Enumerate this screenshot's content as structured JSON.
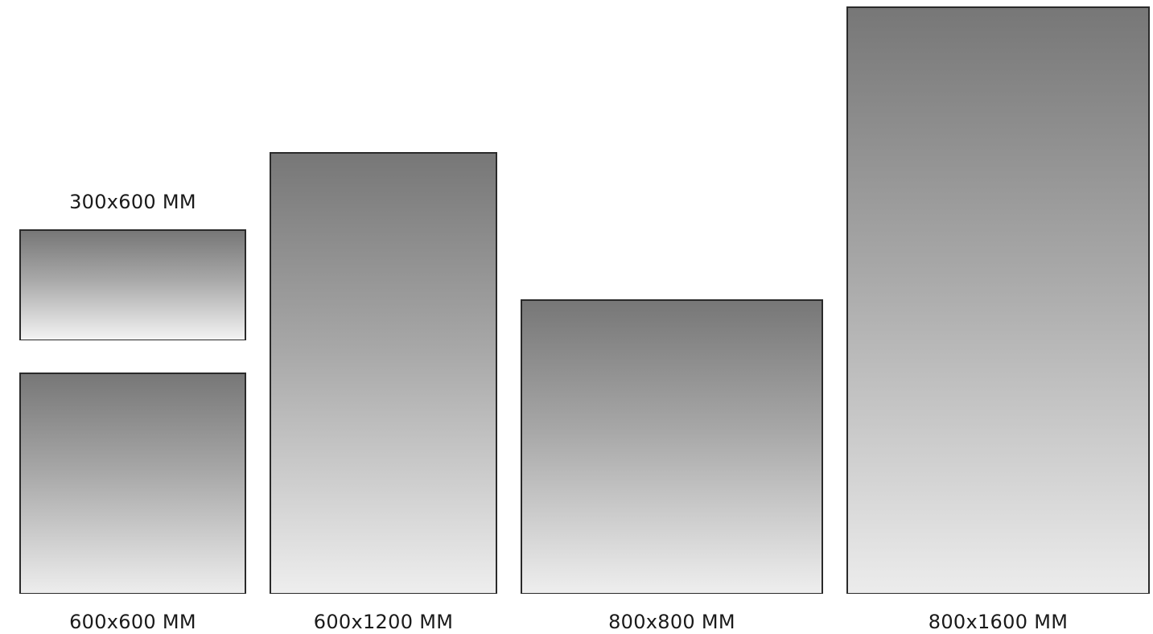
{
  "tiles": [
    {
      "id": "a",
      "label": "300x600 MM",
      "top_color": "#777777",
      "bottom_color": "#f2f2f2"
    },
    {
      "id": "b",
      "label": "600x600 MM",
      "top_color": "#777777",
      "bottom_color": "#ededed"
    },
    {
      "id": "c",
      "label": "600x1200 MM",
      "top_color": "#777777",
      "bottom_color": "#eeeeee"
    },
    {
      "id": "d",
      "label": "800x800 MM",
      "top_color": "#777777",
      "bottom_color": "#eeeeee"
    },
    {
      "id": "e",
      "label": "800x1600 MM",
      "top_color": "#777777",
      "bottom_color": "#ececec"
    }
  ],
  "colors": {
    "border": "#2a2a2a",
    "text": "#1a1a1a",
    "background": "#ffffff"
  }
}
